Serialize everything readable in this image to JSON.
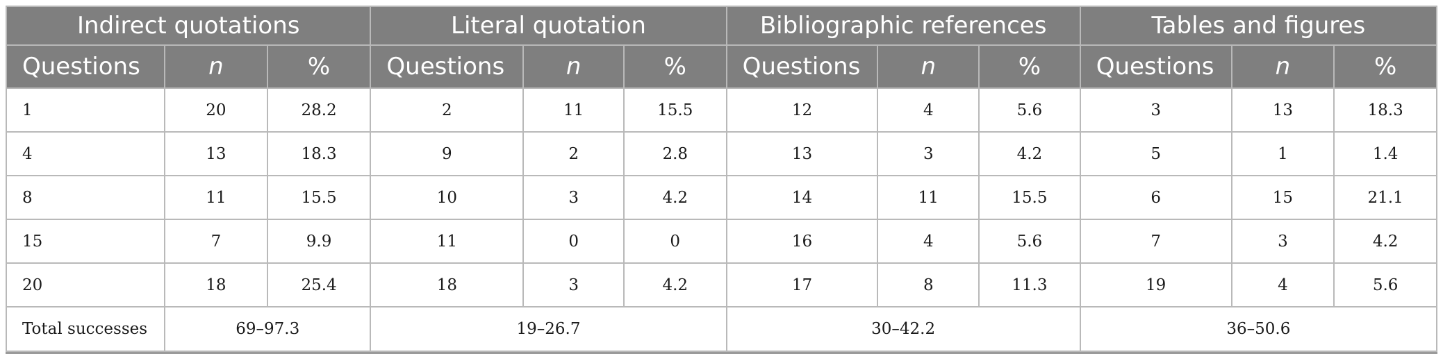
{
  "groups": [
    "Indirect quotations",
    "Literal quotation",
    "Bibliographic references",
    "Tables and figures"
  ],
  "subheaders": {
    "questions": "Questions",
    "n": "n",
    "percent": "%"
  },
  "rows": [
    [
      "1",
      "20",
      "28.2",
      "2",
      "11",
      "15.5",
      "12",
      "4",
      "5.6",
      "3",
      "13",
      "18.3"
    ],
    [
      "4",
      "13",
      "18.3",
      "9",
      "2",
      "2.8",
      "13",
      "3",
      "4.2",
      "5",
      "1",
      "1.4"
    ],
    [
      "8",
      "11",
      "15.5",
      "10",
      "3",
      "4.2",
      "14",
      "11",
      "15.5",
      "6",
      "15",
      "21.1"
    ],
    [
      "15",
      "7",
      "9.9",
      "11",
      "0",
      "0",
      "16",
      "4",
      "5.6",
      "7",
      "3",
      "4.2"
    ],
    [
      "20",
      "18",
      "25.4",
      "18",
      "3",
      "4.2",
      "17",
      "8",
      "11.3",
      "19",
      "4",
      "5.6"
    ]
  ],
  "total": {
    "label": "Total successes",
    "values": [
      "69–97.3",
      "19–26.7",
      "30–42.2",
      "36–50.6"
    ]
  }
}
